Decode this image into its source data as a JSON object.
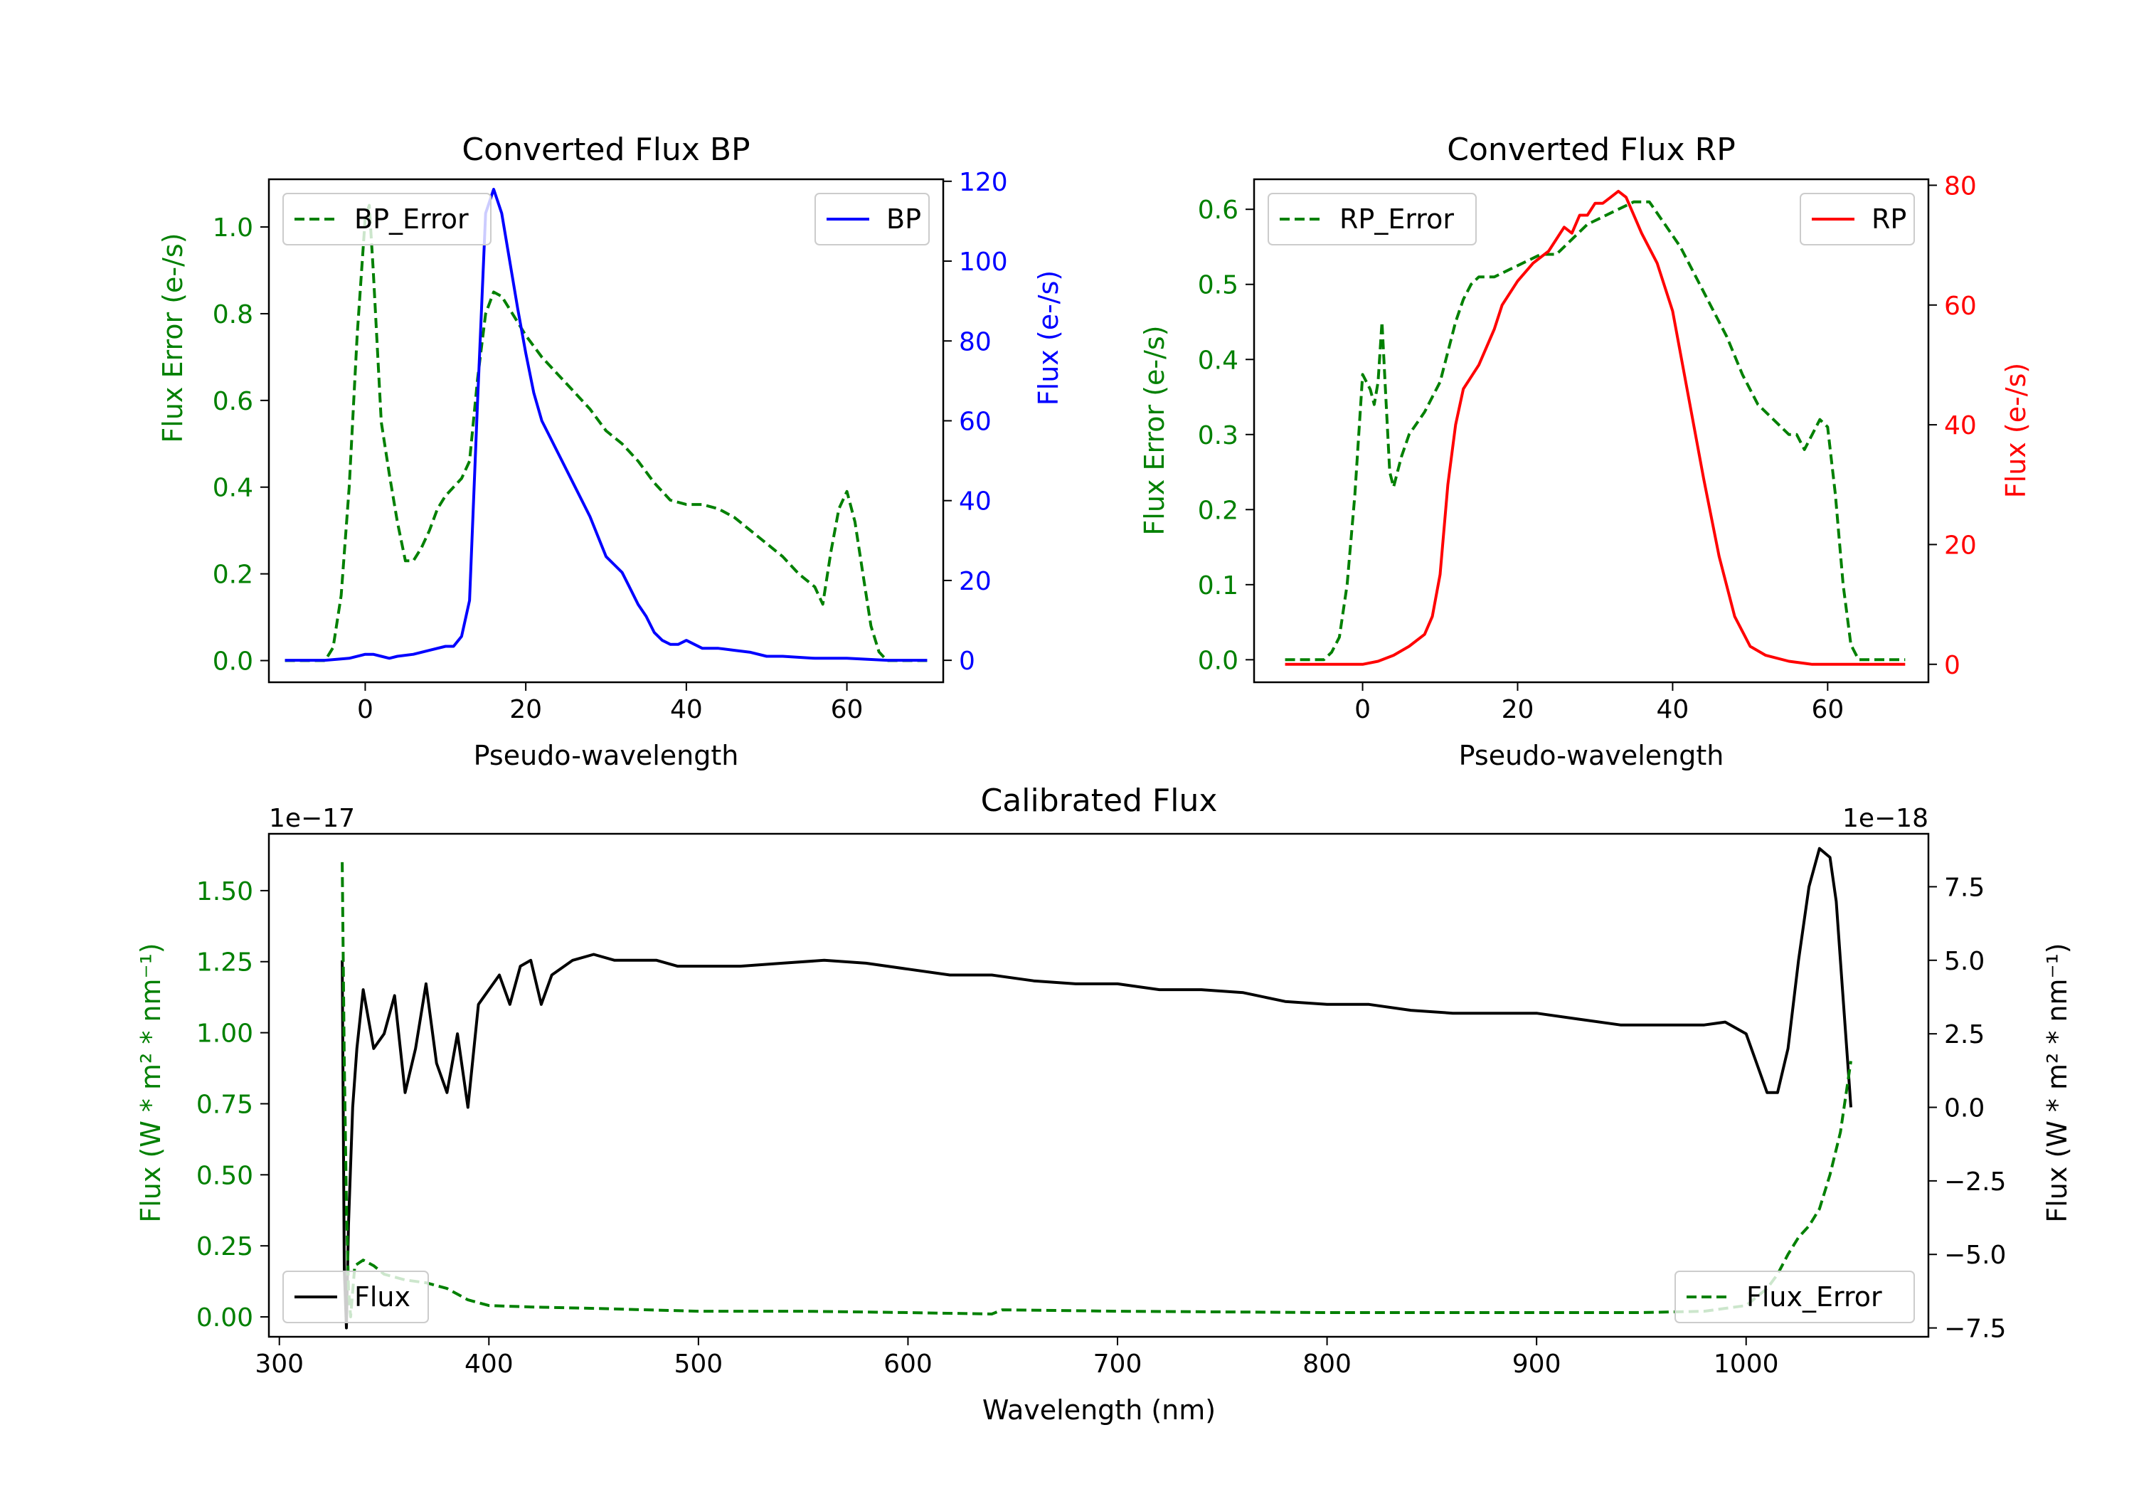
{
  "chart_data": [
    {
      "id": "bp",
      "type": "line",
      "title": "Converted Flux BP",
      "xlabel": "Pseudo-wavelength",
      "xlim": [
        -12,
        72
      ],
      "xticks": [
        0,
        20,
        40,
        60
      ],
      "left_axis": {
        "label": "Flux Error (e-/s)",
        "color": "#008000",
        "ylim": [
          -0.05,
          1.11
        ],
        "ticks": [
          0.0,
          0.2,
          0.4,
          0.6,
          0.8,
          1.0
        ],
        "tick_decimals": 1
      },
      "right_axis": {
        "label": "Flux (e-/s)",
        "color": "#0000ff",
        "ylim": [
          -5.5,
          120.5
        ],
        "ticks": [
          0,
          20,
          40,
          60,
          80,
          100,
          120
        ],
        "tick_decimals": 0
      },
      "series": [
        {
          "name": "BP_Error",
          "axis": "left",
          "color": "#008000",
          "dashed": true,
          "x": [
            -10,
            -5,
            -4,
            -3,
            -2,
            -1,
            0,
            0.5,
            1,
            2,
            3,
            4,
            5,
            6,
            7,
            8,
            9,
            10,
            11,
            12,
            13,
            14,
            15,
            16,
            17,
            18,
            19,
            20,
            22,
            24,
            26,
            28,
            30,
            32,
            34,
            36,
            38,
            40,
            42,
            44,
            46,
            48,
            50,
            52,
            54,
            56,
            57,
            58,
            59,
            60,
            61,
            62,
            63,
            64,
            65,
            67,
            70
          ],
          "y": [
            0.0,
            0.0,
            0.03,
            0.15,
            0.4,
            0.75,
            1.02,
            1.05,
            0.9,
            0.55,
            0.43,
            0.32,
            0.23,
            0.23,
            0.26,
            0.3,
            0.35,
            0.38,
            0.4,
            0.42,
            0.46,
            0.65,
            0.8,
            0.85,
            0.84,
            0.81,
            0.78,
            0.75,
            0.7,
            0.66,
            0.62,
            0.58,
            0.53,
            0.5,
            0.46,
            0.41,
            0.37,
            0.36,
            0.36,
            0.35,
            0.33,
            0.3,
            0.27,
            0.24,
            0.2,
            0.17,
            0.13,
            0.25,
            0.35,
            0.39,
            0.32,
            0.2,
            0.08,
            0.02,
            0.0,
            0.0,
            0.0
          ]
        },
        {
          "name": "BP",
          "axis": "right",
          "color": "#0000ff",
          "dashed": false,
          "x": [
            -10,
            -5,
            -2,
            0,
            1,
            2,
            3,
            4,
            6,
            8,
            10,
            11,
            12,
            13,
            14,
            15,
            16,
            17,
            18,
            19,
            20,
            21,
            22,
            23,
            24,
            26,
            28,
            30,
            31,
            32,
            33,
            34,
            35,
            36,
            37,
            38,
            39,
            40,
            41,
            42,
            44,
            46,
            48,
            50,
            52,
            56,
            60,
            65,
            70
          ],
          "y": [
            0,
            0,
            0.5,
            1.5,
            1.5,
            1,
            0.5,
            1,
            1.5,
            2.5,
            3.5,
            3.5,
            6,
            15,
            65,
            112,
            118,
            112,
            100,
            88,
            77,
            67,
            60,
            56,
            52,
            44,
            36,
            26,
            24,
            22,
            18,
            14,
            11,
            7,
            5,
            4,
            4,
            5,
            4,
            3,
            3,
            2.5,
            2,
            1,
            1,
            0.5,
            0.5,
            0,
            0
          ]
        }
      ],
      "legends": [
        {
          "entries": [
            "BP_Error"
          ],
          "position": "upper left"
        },
        {
          "entries": [
            "BP"
          ],
          "position": "upper right"
        }
      ]
    },
    {
      "id": "rp",
      "type": "line",
      "title": "Converted Flux RP",
      "xlabel": "Pseudo-wavelength",
      "xlim": [
        -14,
        73
      ],
      "xticks": [
        0,
        20,
        40,
        60
      ],
      "left_axis": {
        "label": "Flux Error (e-/s)",
        "color": "#008000",
        "ylim": [
          -0.03,
          0.64
        ],
        "ticks": [
          0.0,
          0.1,
          0.2,
          0.3,
          0.4,
          0.5,
          0.6
        ],
        "tick_decimals": 1
      },
      "right_axis": {
        "label": "Flux (e-/s)",
        "color": "#ff0000",
        "ylim": [
          -3,
          81
        ],
        "ticks": [
          0,
          20,
          40,
          60,
          80
        ],
        "tick_decimals": 0
      },
      "series": [
        {
          "name": "RP_Error",
          "axis": "left",
          "color": "#008000",
          "dashed": true,
          "x": [
            -10,
            -5,
            -4,
            -3,
            -2,
            -1,
            0,
            1,
            1.5,
            2,
            2.5,
            3,
            3.5,
            4,
            5,
            6,
            8,
            10,
            12,
            13,
            14,
            15,
            17,
            19,
            21,
            23,
            25,
            27,
            29,
            31,
            33,
            35,
            37,
            39,
            41,
            43,
            45,
            47,
            49,
            51,
            53,
            55,
            56,
            57,
            58,
            59,
            60,
            61,
            62,
            63,
            64,
            65,
            67,
            70
          ],
          "y": [
            0.0,
            0.0,
            0.01,
            0.03,
            0.1,
            0.22,
            0.38,
            0.36,
            0.34,
            0.37,
            0.45,
            0.35,
            0.25,
            0.23,
            0.27,
            0.3,
            0.33,
            0.37,
            0.45,
            0.48,
            0.5,
            0.51,
            0.51,
            0.52,
            0.53,
            0.54,
            0.54,
            0.56,
            0.58,
            0.59,
            0.6,
            0.61,
            0.61,
            0.58,
            0.55,
            0.51,
            0.47,
            0.43,
            0.38,
            0.34,
            0.32,
            0.3,
            0.3,
            0.28,
            0.3,
            0.32,
            0.31,
            0.22,
            0.1,
            0.02,
            0.0,
            0.0,
            0.0,
            0.0
          ]
        },
        {
          "name": "RP",
          "axis": "right",
          "color": "#ff0000",
          "dashed": false,
          "x": [
            -10,
            -5,
            0,
            2,
            4,
            6,
            8,
            9,
            10,
            11,
            12,
            13,
            14,
            15,
            16,
            17,
            18,
            20,
            22,
            24,
            26,
            27,
            28,
            29,
            30,
            31,
            32,
            33,
            34,
            35,
            36,
            38,
            40,
            42,
            44,
            46,
            48,
            50,
            52,
            55,
            58,
            60,
            65,
            70
          ],
          "y": [
            0,
            0,
            0,
            0.5,
            1.5,
            3,
            5,
            8,
            15,
            30,
            40,
            46,
            48,
            50,
            53,
            56,
            60,
            64,
            67,
            69,
            73,
            72,
            75,
            75,
            77,
            77,
            78,
            79,
            78,
            75,
            72,
            67,
            59,
            45,
            31,
            18,
            8,
            3,
            1.5,
            0.5,
            0,
            0,
            0,
            0
          ]
        }
      ],
      "legends": [
        {
          "entries": [
            "RP_Error"
          ],
          "position": "upper left"
        },
        {
          "entries": [
            "RP"
          ],
          "position": "upper right"
        }
      ]
    },
    {
      "id": "cal",
      "type": "line",
      "title": "Calibrated Flux",
      "xlabel": "Wavelength (nm)",
      "xlim": [
        295,
        1087
      ],
      "xticks": [
        300,
        400,
        500,
        600,
        700,
        800,
        900,
        1000
      ],
      "left_axis": {
        "label": "Flux (W * m² * nm⁻¹)",
        "color": "#008000",
        "ylim": [
          -0.07,
          1.7
        ],
        "ticks": [
          0.0,
          0.25,
          0.5,
          0.75,
          1.0,
          1.25,
          1.5
        ],
        "tick_decimals": 2,
        "offset_label": "1e−17"
      },
      "right_axis": {
        "label": "Flux (W * m² * nm⁻¹)",
        "color": "#000000",
        "ylim": [
          -7.8,
          9.3
        ],
        "ticks": [
          -7.5,
          -5.0,
          -2.5,
          0.0,
          2.5,
          5.0,
          7.5
        ],
        "tick_decimals": 1,
        "offset_label": "1e−18"
      },
      "series": [
        {
          "name": "Flux",
          "axis": "right",
          "color": "#000000",
          "dashed": false,
          "x": [
            330,
            331,
            332,
            333,
            335,
            337,
            340,
            345,
            350,
            355,
            360,
            365,
            370,
            375,
            380,
            385,
            390,
            395,
            400,
            405,
            410,
            415,
            420,
            425,
            430,
            440,
            450,
            460,
            470,
            480,
            490,
            500,
            510,
            520,
            540,
            560,
            580,
            600,
            620,
            640,
            660,
            680,
            700,
            720,
            740,
            760,
            780,
            800,
            820,
            840,
            860,
            880,
            900,
            920,
            940,
            960,
            980,
            990,
            1000,
            1005,
            1010,
            1015,
            1020,
            1025,
            1030,
            1035,
            1040,
            1043,
            1046,
            1049,
            1050
          ],
          "y": [
            5,
            -5.5,
            -7.5,
            -4,
            0,
            2,
            4,
            2,
            2.5,
            3.8,
            0.5,
            2,
            4.2,
            1.5,
            0.5,
            2.5,
            0,
            3.5,
            4,
            4.5,
            3.5,
            4.8,
            5,
            3.5,
            4.5,
            5,
            5.2,
            5,
            5,
            5,
            4.8,
            4.8,
            4.8,
            4.8,
            4.9,
            5,
            4.9,
            4.7,
            4.5,
            4.5,
            4.3,
            4.2,
            4.2,
            4,
            4,
            3.9,
            3.6,
            3.5,
            3.5,
            3.3,
            3.2,
            3.2,
            3.2,
            3.0,
            2.8,
            2.8,
            2.8,
            2.9,
            2.5,
            1.5,
            0.5,
            0.5,
            2.0,
            5.0,
            7.5,
            8.8,
            8.5,
            7.0,
            4.0,
            1.0,
            0.0
          ]
        },
        {
          "name": "Flux_Error",
          "axis": "left",
          "color": "#008000",
          "dashed": true,
          "x": [
            330,
            331,
            332,
            333,
            334,
            336,
            340,
            345,
            350,
            360,
            370,
            380,
            390,
            400,
            420,
            450,
            500,
            550,
            600,
            640,
            645,
            700,
            800,
            900,
            950,
            980,
            1000,
            1010,
            1015,
            1020,
            1025,
            1030,
            1035,
            1040,
            1045,
            1048,
            1050
          ],
          "y": [
            1.6,
            0.9,
            0.4,
            0.1,
            0.0,
            0.18,
            0.2,
            0.18,
            0.15,
            0.13,
            0.12,
            0.1,
            0.06,
            0.04,
            0.035,
            0.03,
            0.02,
            0.02,
            0.015,
            0.01,
            0.025,
            0.02,
            0.015,
            0.015,
            0.015,
            0.02,
            0.04,
            0.1,
            0.15,
            0.22,
            0.28,
            0.32,
            0.38,
            0.5,
            0.65,
            0.8,
            0.9
          ]
        }
      ],
      "legends": [
        {
          "entries": [
            "Flux"
          ],
          "position": "lower left"
        },
        {
          "entries": [
            "Flux_Error"
          ],
          "position": "lower right"
        }
      ]
    }
  ]
}
